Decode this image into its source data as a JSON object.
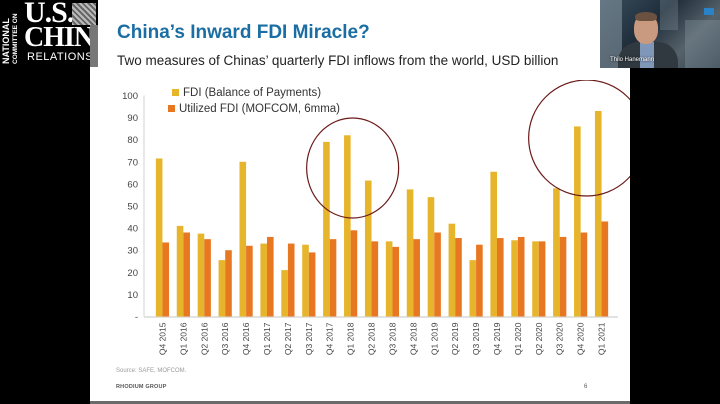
{
  "logo": {
    "vertical_line1": "NATIONAL",
    "vertical_line2": "COMMITTEE ON",
    "line_us": "U.S.",
    "line_china": "CHINA",
    "line_relations": "RELATIONS"
  },
  "slide": {
    "title": "China’s Inward FDI Miracle?",
    "subtitle": "Two measures of Chinas’ quarterly FDI inflows from the world, USD billion",
    "source": "Source: SAFE, MOFCOM.",
    "footer": "RHODIUM GROUP",
    "page_number": "6"
  },
  "webcam": {
    "participant_name": "Thilo Hanemann"
  },
  "colors": {
    "title": "#1b6ea3",
    "fdi_bop": "#e6b52c",
    "utilized_fdi": "#e87722",
    "highlight_circle": "#6b1a1a"
  },
  "chart_data": {
    "type": "bar",
    "title": "China’s Inward FDI Miracle?",
    "subtitle": "Two measures of Chinas’ quarterly FDI inflows from the world, USD billion",
    "xlabel": "",
    "ylabel": "",
    "ylim": [
      0,
      100
    ],
    "yticks": [
      0,
      10,
      20,
      30,
      40,
      50,
      60,
      70,
      80,
      90,
      100
    ],
    "ytick_labels": [
      "-",
      "10",
      "20",
      "30",
      "40",
      "50",
      "60",
      "70",
      "80",
      "90",
      "100"
    ],
    "grid": false,
    "legend_position": "top-left",
    "categories": [
      "Q4 2015",
      "Q1 2016",
      "Q2 2016",
      "Q3 2016",
      "Q4 2016",
      "Q1 2017",
      "Q2 2017",
      "Q3 2017",
      "Q4 2017",
      "Q1 2018",
      "Q2 2018",
      "Q3 2018",
      "Q4 2018",
      "Q1 2019",
      "Q2 2019",
      "Q3 2019",
      "Q4 2019",
      "Q1 2020",
      "Q2 2020",
      "Q3 2020",
      "Q4 2020",
      "Q1 2021"
    ],
    "series": [
      {
        "name": "FDI (Balance of Payments)",
        "color": "#e6b52c",
        "values": [
          71.5,
          41,
          37.5,
          25.5,
          70,
          33,
          21,
          32.5,
          79,
          82,
          61.5,
          34,
          57.5,
          54,
          42,
          25.5,
          65.5,
          34.5,
          34,
          58,
          86,
          93
        ]
      },
      {
        "name": "Utilized FDI (MOFCOM, 6mma)",
        "color": "#e87722",
        "values": [
          33.5,
          38,
          35,
          30,
          32,
          36,
          33,
          29,
          35,
          39,
          34,
          31.5,
          35,
          38,
          35.5,
          32.5,
          35.5,
          36,
          34,
          36,
          38,
          43
        ]
      }
    ],
    "annotations": [
      {
        "type": "circle",
        "label": "highlight",
        "around_categories": [
          "Q4 2017",
          "Q1 2018",
          "Q2 2018"
        ]
      },
      {
        "type": "circle",
        "label": "highlight",
        "around_categories": [
          "Q3 2020",
          "Q4 2020",
          "Q1 2021"
        ]
      }
    ]
  }
}
